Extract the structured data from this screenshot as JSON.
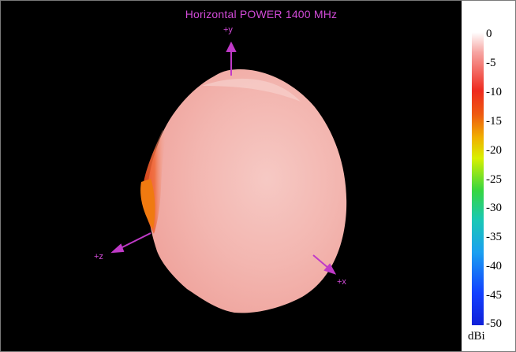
{
  "title": "Horizontal POWER 1400  MHz",
  "axes": {
    "y": "+y",
    "z": "+z",
    "x": "+x"
  },
  "colorbar": {
    "units": "dBi",
    "ticks": [
      "0",
      "-5",
      "-10",
      "-15",
      "-20",
      "-25",
      "-30",
      "-35",
      "-40",
      "-45",
      "-50"
    ]
  },
  "colors": {
    "accent": "#d24bd8",
    "surface": "#f2b7b2",
    "hot": "#ee3020"
  }
}
